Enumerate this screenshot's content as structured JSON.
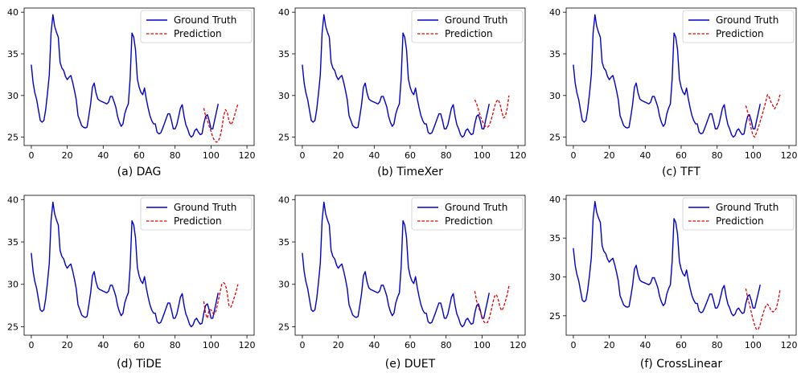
{
  "colors": {
    "ground_truth": "#0000cc",
    "prediction": "#e00000",
    "axis": "#000000",
    "legend_border": "#cccccc"
  },
  "chart_data": [
    {
      "type": "line",
      "caption": "(a) DAG",
      "legend": [
        "Ground Truth",
        "Prediction"
      ],
      "legend_location": "top-right",
      "xlim": [
        -4,
        124
      ],
      "ylim": [
        24.0,
        40.5
      ],
      "xticks": [
        0,
        20,
        40,
        60,
        80,
        100,
        120
      ],
      "yticks": [
        25,
        30,
        35,
        40
      ],
      "ground_truth_x_start": 0,
      "ground_truth": [
        33.7,
        31.5,
        30.3,
        29.5,
        28.2,
        27.0,
        26.8,
        27.0,
        28.3,
        30.2,
        32.5,
        37.5,
        39.7,
        38.3,
        37.6,
        37.0,
        34.0,
        33.3,
        33.0,
        32.3,
        31.9,
        32.2,
        32.4,
        31.6,
        30.6,
        29.5,
        27.6,
        27.0,
        26.4,
        26.2,
        26.1,
        26.2,
        27.5,
        29.0,
        31.0,
        31.5,
        30.3,
        29.6,
        29.4,
        29.3,
        29.2,
        29.1,
        29.0,
        29.2,
        29.9,
        29.9,
        29.3,
        28.6,
        27.5,
        26.8,
        26.3,
        26.6,
        27.8,
        28.5,
        29.0,
        32.0,
        37.5,
        37.0,
        35.5,
        32.0,
        31.0,
        30.4,
        30.1,
        30.9,
        29.6,
        28.5,
        27.6,
        27.0,
        26.6,
        26.6,
        25.6,
        25.4,
        25.5,
        26.0,
        26.6,
        27.2,
        27.8,
        27.8,
        27.0,
        26.0,
        26.0,
        26.5,
        27.5,
        28.5,
        28.9,
        27.5,
        26.5,
        26.0,
        25.3,
        25.0,
        25.2,
        25.8,
        26.0,
        25.6,
        25.3,
        25.4,
        26.6,
        27.5,
        27.7,
        27.0,
        26.0,
        26.0,
        27.0,
        28.0,
        29.0
      ],
      "prediction_x_start": 96,
      "prediction": [
        28.5,
        27.5,
        27.0,
        26.3,
        25.7,
        25.0,
        24.6,
        24.4,
        24.5,
        25.0,
        26.0,
        27.5,
        28.3,
        28.0,
        27.0,
        26.5,
        26.8,
        27.5,
        28.3,
        29.0
      ]
    },
    {
      "type": "line",
      "caption": "(b) TimeXer",
      "legend": [
        "Ground Truth",
        "Prediction"
      ],
      "legend_location": "top-right",
      "xlim": [
        -4,
        124
      ],
      "ylim": [
        24.0,
        40.5
      ],
      "xticks": [
        0,
        20,
        40,
        60,
        80,
        100,
        120
      ],
      "yticks": [
        25,
        30,
        35,
        40
      ],
      "ground_truth_x_start": 0,
      "ground_truth": [
        33.7,
        31.5,
        30.3,
        29.5,
        28.2,
        27.0,
        26.8,
        27.0,
        28.3,
        30.2,
        32.5,
        37.5,
        39.7,
        38.3,
        37.6,
        37.0,
        34.0,
        33.3,
        33.0,
        32.3,
        31.9,
        32.2,
        32.4,
        31.6,
        30.6,
        29.5,
        27.6,
        27.0,
        26.4,
        26.2,
        26.1,
        26.2,
        27.5,
        29.0,
        31.0,
        31.5,
        30.3,
        29.6,
        29.4,
        29.3,
        29.2,
        29.1,
        29.0,
        29.2,
        29.9,
        29.9,
        29.3,
        28.6,
        27.5,
        26.8,
        26.3,
        26.6,
        27.8,
        28.5,
        29.0,
        32.0,
        37.5,
        37.0,
        35.5,
        32.0,
        31.0,
        30.4,
        30.1,
        30.9,
        29.6,
        28.5,
        27.6,
        27.0,
        26.6,
        26.6,
        25.6,
        25.4,
        25.5,
        26.0,
        26.6,
        27.2,
        27.8,
        27.8,
        27.0,
        26.0,
        26.0,
        26.5,
        27.5,
        28.5,
        28.9,
        27.5,
        26.5,
        26.0,
        25.3,
        25.0,
        25.2,
        25.8,
        26.0,
        25.6,
        25.3,
        25.4,
        26.6,
        27.5,
        27.7,
        27.0,
        26.0,
        26.0,
        27.0,
        28.0,
        29.0
      ],
      "prediction_x_start": 96,
      "prediction": [
        29.5,
        29.0,
        28.3,
        27.6,
        27.0,
        26.6,
        26.3,
        26.2,
        26.4,
        27.0,
        27.8,
        28.7,
        29.3,
        29.5,
        29.0,
        28.0,
        27.3,
        27.5,
        28.5,
        30.0
      ]
    },
    {
      "type": "line",
      "caption": "(c) TFT",
      "legend": [
        "Ground Truth",
        "Prediction"
      ],
      "legend_location": "top-right",
      "xlim": [
        -4,
        124
      ],
      "ylim": [
        24.0,
        40.5
      ],
      "xticks": [
        0,
        20,
        40,
        60,
        80,
        100,
        120
      ],
      "yticks": [
        25,
        30,
        35,
        40
      ],
      "ground_truth_x_start": 0,
      "ground_truth": [
        33.7,
        31.5,
        30.3,
        29.5,
        28.2,
        27.0,
        26.8,
        27.0,
        28.3,
        30.2,
        32.5,
        37.5,
        39.7,
        38.3,
        37.6,
        37.0,
        34.0,
        33.3,
        33.0,
        32.3,
        31.9,
        32.2,
        32.4,
        31.6,
        30.6,
        29.5,
        27.6,
        27.0,
        26.4,
        26.2,
        26.1,
        26.2,
        27.5,
        29.0,
        31.0,
        31.5,
        30.3,
        29.6,
        29.4,
        29.3,
        29.2,
        29.1,
        29.0,
        29.2,
        29.9,
        29.9,
        29.3,
        28.6,
        27.5,
        26.8,
        26.3,
        26.6,
        27.8,
        28.5,
        29.0,
        32.0,
        37.5,
        37.0,
        35.5,
        32.0,
        31.0,
        30.4,
        30.1,
        30.9,
        29.6,
        28.5,
        27.6,
        27.0,
        26.6,
        26.6,
        25.6,
        25.4,
        25.5,
        26.0,
        26.6,
        27.2,
        27.8,
        27.8,
        27.0,
        26.0,
        26.0,
        26.5,
        27.5,
        28.5,
        28.9,
        27.5,
        26.5,
        26.0,
        25.3,
        25.0,
        25.2,
        25.8,
        26.0,
        25.6,
        25.3,
        25.4,
        26.6,
        27.5,
        27.7,
        27.0,
        26.0,
        26.0,
        27.0,
        28.0,
        29.0
      ],
      "prediction_x_start": 96,
      "prediction": [
        28.8,
        28.0,
        27.0,
        26.0,
        25.2,
        25.0,
        25.6,
        26.2,
        26.9,
        27.6,
        28.4,
        29.2,
        30.1,
        29.8,
        29.2,
        28.8,
        28.4,
        28.8,
        29.3,
        30.1
      ]
    },
    {
      "type": "line",
      "caption": "(d) TiDE",
      "legend": [
        "Ground Truth",
        "Prediction"
      ],
      "legend_location": "top-right",
      "xlim": [
        -4,
        124
      ],
      "ylim": [
        24.0,
        40.5
      ],
      "xticks": [
        0,
        20,
        40,
        60,
        80,
        100,
        120
      ],
      "yticks": [
        25,
        30,
        35,
        40
      ],
      "ground_truth_x_start": 0,
      "ground_truth": [
        33.7,
        31.5,
        30.3,
        29.5,
        28.2,
        27.0,
        26.8,
        27.0,
        28.3,
        30.2,
        32.5,
        37.5,
        39.7,
        38.3,
        37.6,
        37.0,
        34.0,
        33.3,
        33.0,
        32.3,
        31.9,
        32.2,
        32.4,
        31.6,
        30.6,
        29.5,
        27.6,
        27.0,
        26.4,
        26.2,
        26.1,
        26.2,
        27.5,
        29.0,
        31.0,
        31.5,
        30.3,
        29.6,
        29.4,
        29.3,
        29.2,
        29.1,
        29.0,
        29.2,
        29.9,
        29.9,
        29.3,
        28.6,
        27.5,
        26.8,
        26.3,
        26.6,
        27.8,
        28.5,
        29.0,
        32.0,
        37.5,
        37.0,
        35.5,
        32.0,
        31.0,
        30.4,
        30.1,
        30.9,
        29.6,
        28.5,
        27.6,
        27.0,
        26.6,
        26.6,
        25.6,
        25.4,
        25.5,
        26.0,
        26.6,
        27.2,
        27.8,
        27.8,
        27.0,
        26.0,
        26.0,
        26.5,
        27.5,
        28.5,
        28.9,
        27.5,
        26.5,
        26.0,
        25.3,
        25.0,
        25.2,
        25.8,
        26.0,
        25.6,
        25.3,
        25.4,
        26.6,
        27.5,
        27.7,
        27.0,
        26.0,
        26.0,
        27.0,
        28.0,
        29.0
      ],
      "prediction_x_start": 96,
      "prediction": [
        28.0,
        26.5,
        26.0,
        27.0,
        27.0,
        26.6,
        26.5,
        27.0,
        28.0,
        29.0,
        30.0,
        30.2,
        30.0,
        29.0,
        27.5,
        27.3,
        27.8,
        28.5,
        29.2,
        30.0
      ]
    },
    {
      "type": "line",
      "caption": "(e) DUET",
      "legend": [
        "Ground Truth",
        "Prediction"
      ],
      "legend_location": "top-right",
      "xlim": [
        -4,
        124
      ],
      "ylim": [
        24.0,
        40.5
      ],
      "xticks": [
        0,
        20,
        40,
        60,
        80,
        100,
        120
      ],
      "yticks": [
        25,
        30,
        35,
        40
      ],
      "ground_truth_x_start": 0,
      "ground_truth": [
        33.7,
        31.5,
        30.3,
        29.5,
        28.2,
        27.0,
        26.8,
        27.0,
        28.3,
        30.2,
        32.5,
        37.5,
        39.7,
        38.3,
        37.6,
        37.0,
        34.0,
        33.3,
        33.0,
        32.3,
        31.9,
        32.2,
        32.4,
        31.6,
        30.6,
        29.5,
        27.6,
        27.0,
        26.4,
        26.2,
        26.1,
        26.2,
        27.5,
        29.0,
        31.0,
        31.5,
        30.3,
        29.6,
        29.4,
        29.3,
        29.2,
        29.1,
        29.0,
        29.2,
        29.9,
        29.9,
        29.3,
        28.6,
        27.5,
        26.8,
        26.3,
        26.6,
        27.8,
        28.5,
        29.0,
        32.0,
        37.5,
        37.0,
        35.5,
        32.0,
        31.0,
        30.4,
        30.1,
        30.9,
        29.6,
        28.5,
        27.6,
        27.0,
        26.6,
        26.6,
        25.6,
        25.4,
        25.5,
        26.0,
        26.6,
        27.2,
        27.8,
        27.8,
        27.0,
        26.0,
        26.0,
        26.5,
        27.5,
        28.5,
        28.9,
        27.5,
        26.5,
        26.0,
        25.3,
        25.0,
        25.2,
        25.8,
        26.0,
        25.6,
        25.3,
        25.4,
        26.6,
        27.5,
        27.7,
        27.0,
        26.0,
        26.0,
        27.0,
        28.0,
        29.0
      ],
      "prediction_x_start": 96,
      "prediction": [
        29.2,
        28.0,
        27.3,
        26.8,
        26.2,
        25.6,
        25.4,
        25.5,
        26.0,
        26.8,
        27.8,
        28.6,
        28.8,
        28.2,
        27.3,
        26.9,
        27.3,
        28.0,
        28.8,
        29.8
      ]
    },
    {
      "type": "line",
      "caption": "(f) CrossLinear",
      "legend": [
        "Ground Truth",
        "Prediction"
      ],
      "legend_location": "top-right",
      "xlim": [
        -4,
        124
      ],
      "ylim": [
        22.5,
        40.5
      ],
      "xticks": [
        0,
        20,
        40,
        60,
        80,
        100,
        120
      ],
      "yticks": [
        25,
        30,
        35,
        40
      ],
      "ground_truth_x_start": 0,
      "ground_truth": [
        33.7,
        31.5,
        30.3,
        29.5,
        28.2,
        27.0,
        26.8,
        27.0,
        28.3,
        30.2,
        32.5,
        37.5,
        39.7,
        38.3,
        37.6,
        37.0,
        34.0,
        33.3,
        33.0,
        32.3,
        31.9,
        32.2,
        32.4,
        31.6,
        30.6,
        29.5,
        27.6,
        27.0,
        26.4,
        26.2,
        26.1,
        26.2,
        27.5,
        29.0,
        31.0,
        31.5,
        30.3,
        29.6,
        29.4,
        29.3,
        29.2,
        29.1,
        29.0,
        29.2,
        29.9,
        29.9,
        29.3,
        28.6,
        27.5,
        26.8,
        26.3,
        26.6,
        27.8,
        28.5,
        29.0,
        32.0,
        37.5,
        37.0,
        35.5,
        32.0,
        31.0,
        30.4,
        30.1,
        30.9,
        29.6,
        28.5,
        27.6,
        27.0,
        26.6,
        26.6,
        25.6,
        25.4,
        25.5,
        26.0,
        26.6,
        27.2,
        27.8,
        27.8,
        27.0,
        26.0,
        26.0,
        26.5,
        27.5,
        28.5,
        28.9,
        27.5,
        26.5,
        26.0,
        25.3,
        25.0,
        25.2,
        25.8,
        26.0,
        25.6,
        25.3,
        25.4,
        26.6,
        27.5,
        27.7,
        27.0,
        26.0,
        26.0,
        27.0,
        28.0,
        29.0
      ],
      "prediction_x_start": 96,
      "prediction": [
        28.5,
        27.3,
        26.5,
        25.5,
        24.5,
        23.7,
        23.2,
        23.3,
        23.9,
        24.8,
        25.6,
        26.2,
        26.5,
        26.2,
        25.7,
        25.5,
        25.6,
        26.0,
        27.0,
        28.3
      ]
    }
  ]
}
